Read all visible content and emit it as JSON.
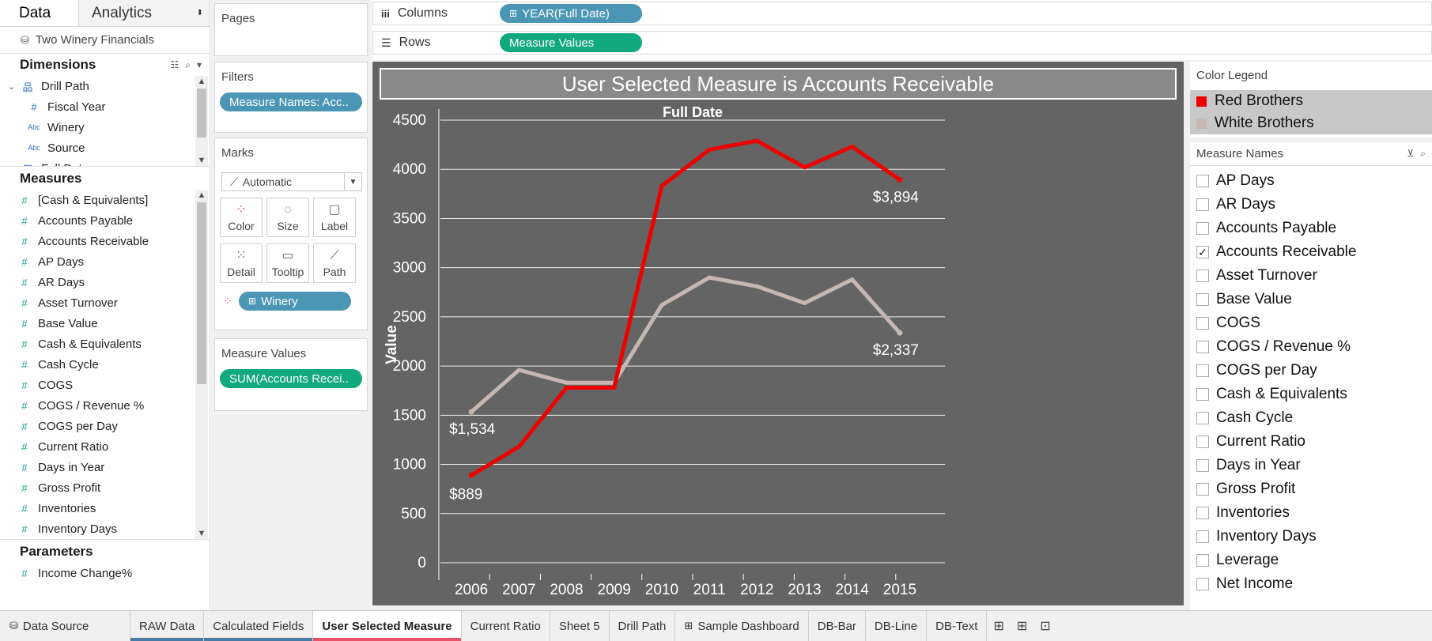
{
  "data_pane": {
    "tabs": {
      "data": "Data",
      "analytics": "Analytics"
    },
    "datasource": "Two Winery Financials",
    "dimensions_title": "Dimensions",
    "dimensions": [
      {
        "label": "Drill Path",
        "icon": "hierarchy-icon",
        "glyph": "品",
        "indent": 1
      },
      {
        "label": "Fiscal Year",
        "icon": "number-icon",
        "glyph": "#",
        "indent": 2
      },
      {
        "label": "Winery",
        "icon": "string-icon",
        "glyph": "Abc",
        "indent": 2
      },
      {
        "label": "Source",
        "icon": "string-icon",
        "glyph": "Abc",
        "indent": 2
      },
      {
        "label": "Full Date",
        "icon": "date-icon",
        "glyph": "▦",
        "indent": 1
      }
    ],
    "measures_title": "Measures",
    "measures": [
      "[Cash & Equivalents]",
      "Accounts Payable",
      "Accounts Receivable",
      "AP Days",
      "AR Days",
      "Asset Turnover",
      "Base Value",
      "Cash & Equivalents",
      "Cash Cycle",
      "COGS",
      "COGS / Revenue %",
      "COGS per Day",
      "Current Ratio",
      "Days in Year",
      "Gross Profit",
      "Inventories",
      "Inventory Days"
    ],
    "parameters_title": "Parameters",
    "parameters": [
      "Income Change%"
    ]
  },
  "shelves": {
    "pages_title": "Pages",
    "filters_title": "Filters",
    "filter_pill": "Measure Names: Acc..",
    "marks_title": "Marks",
    "mark_type": "Automatic",
    "mark_buttons": [
      "Color",
      "Size",
      "Label",
      "Detail",
      "Tooltip",
      "Path"
    ],
    "marks_pill": "Winery",
    "measure_values_title": "Measure Values",
    "measure_values_pill": "SUM(Accounts Recei.."
  },
  "columns": {
    "label": "Columns",
    "pill": "YEAR(Full Date)"
  },
  "rows": {
    "label": "Rows",
    "pill": "Measure Values"
  },
  "chart_data": {
    "type": "line",
    "title": "User Selected Measure is Accounts Receivable",
    "xlabel": "Full Date",
    "ylabel": "Value",
    "categories": [
      "2006",
      "2007",
      "2008",
      "2009",
      "2010",
      "2011",
      "2012",
      "2013",
      "2014",
      "2015"
    ],
    "ylim": [
      0,
      4500
    ],
    "yticks": [
      "0",
      "500",
      "1000",
      "1500",
      "2000",
      "2500",
      "3000",
      "3500",
      "4000",
      "4500"
    ],
    "grid": true,
    "series": [
      {
        "name": "Red Brothers",
        "color": "#ee0000",
        "values": [
          889,
          1180,
          1780,
          1780,
          3830,
          4200,
          4290,
          4020,
          4230,
          3894
        ],
        "start_label": "$889",
        "end_label": "$3,894"
      },
      {
        "name": "White Brothers",
        "color": "#c5b7b1",
        "values": [
          1534,
          1960,
          1830,
          1830,
          2620,
          2900,
          2810,
          2640,
          2880,
          2337
        ],
        "start_label": "$1,534",
        "end_label": "$2,337"
      }
    ]
  },
  "color_legend": {
    "title": "Color Legend"
  },
  "measure_names": {
    "title": "Measure Names",
    "items": [
      {
        "label": "AP Days",
        "checked": false
      },
      {
        "label": "AR Days",
        "checked": false
      },
      {
        "label": "Accounts Payable",
        "checked": false
      },
      {
        "label": "Accounts Receivable",
        "checked": true
      },
      {
        "label": "Asset Turnover",
        "checked": false
      },
      {
        "label": "Base Value",
        "checked": false
      },
      {
        "label": "COGS",
        "checked": false
      },
      {
        "label": "COGS / Revenue %",
        "checked": false
      },
      {
        "label": "COGS per Day",
        "checked": false
      },
      {
        "label": "Cash & Equivalents",
        "checked": false
      },
      {
        "label": "Cash Cycle",
        "checked": false
      },
      {
        "label": "Current Ratio",
        "checked": false
      },
      {
        "label": "Days in Year",
        "checked": false
      },
      {
        "label": "Gross Profit",
        "checked": false
      },
      {
        "label": "Inventories",
        "checked": false
      },
      {
        "label": "Inventory Days",
        "checked": false
      },
      {
        "label": "Leverage",
        "checked": false
      },
      {
        "label": "Net Income",
        "checked": false
      }
    ]
  },
  "sheet_tabs": [
    {
      "label": "Data Source",
      "icon": "datasource-icon",
      "active": false,
      "accent": ""
    },
    {
      "label": "RAW Data",
      "active": false,
      "accent": "#4a7ba6"
    },
    {
      "label": "Calculated Fields",
      "active": false,
      "accent": "#4a7ba6"
    },
    {
      "label": "User Selected Measure",
      "active": true,
      "accent": "#e8536a"
    },
    {
      "label": "Current Ratio",
      "active": false,
      "accent": ""
    },
    {
      "label": "Sheet 5",
      "active": false,
      "accent": ""
    },
    {
      "label": "Drill Path",
      "active": false,
      "accent": ""
    },
    {
      "label": "Sample Dashboard",
      "icon": "dashboard-icon",
      "active": false,
      "accent": ""
    },
    {
      "label": "DB-Bar",
      "active": false,
      "accent": ""
    },
    {
      "label": "DB-Line",
      "active": false,
      "accent": ""
    },
    {
      "label": "DB-Text",
      "active": false,
      "accent": ""
    }
  ]
}
